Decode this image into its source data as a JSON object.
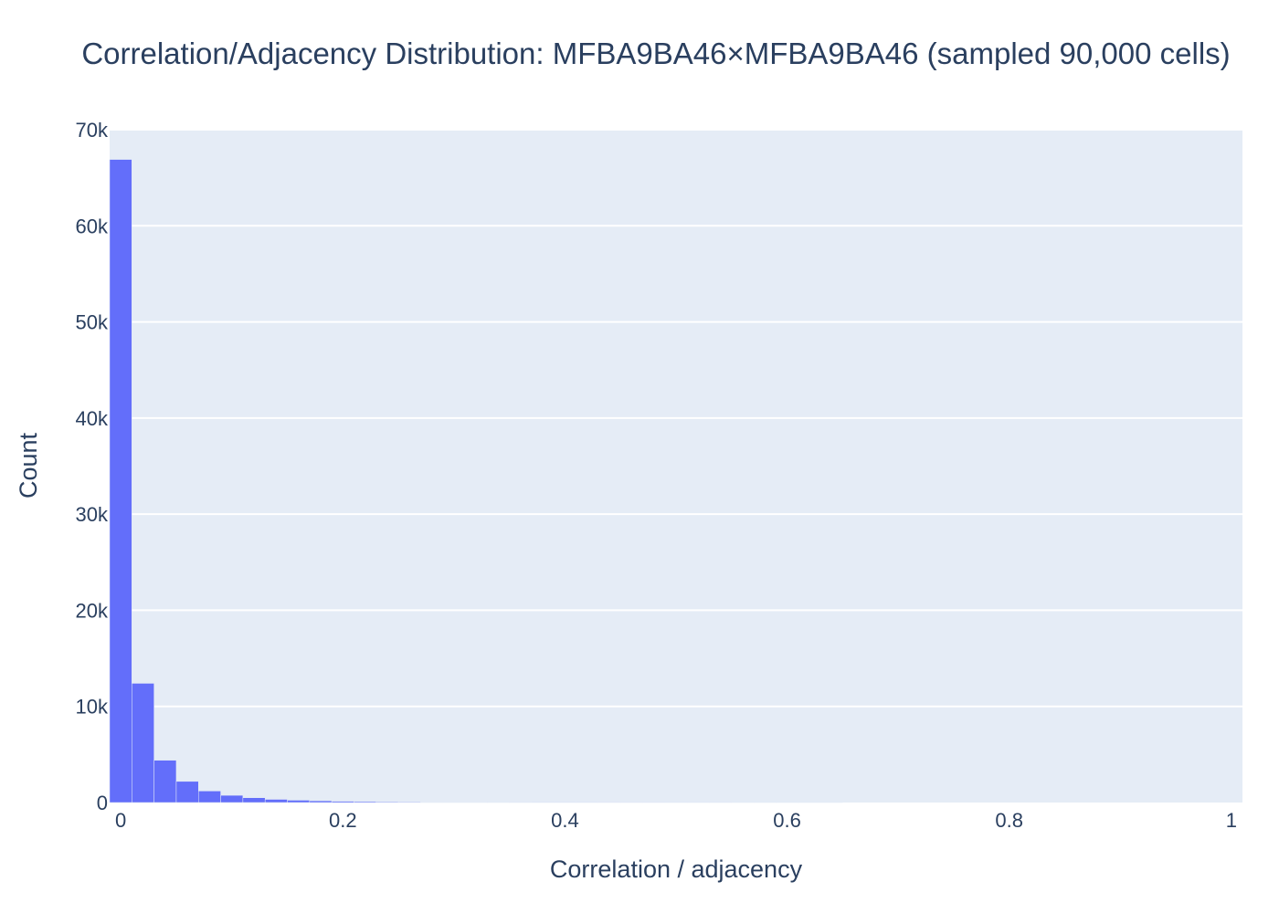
{
  "chart_data": {
    "type": "bar",
    "title": "Correlation/Adjacency Distribution: MFBA9BA46×MFBA9BA46 (sampled 90,000 cells)",
    "xlabel": "Correlation / adjacency",
    "ylabel": "Count",
    "xlim": [
      -0.01,
      1.01
    ],
    "ylim": [
      0,
      70000
    ],
    "x_ticks": [
      {
        "value": 0,
        "label": "0"
      },
      {
        "value": 0.2,
        "label": "0.2"
      },
      {
        "value": 0.4,
        "label": "0.4"
      },
      {
        "value": 0.6,
        "label": "0.6"
      },
      {
        "value": 0.8,
        "label": "0.8"
      },
      {
        "value": 1,
        "label": "1"
      }
    ],
    "y_ticks": [
      {
        "value": 0,
        "label": "0"
      },
      {
        "value": 10000,
        "label": "10k"
      },
      {
        "value": 20000,
        "label": "20k"
      },
      {
        "value": 30000,
        "label": "30k"
      },
      {
        "value": 40000,
        "label": "40k"
      },
      {
        "value": 50000,
        "label": "50k"
      },
      {
        "value": 60000,
        "label": "60k"
      },
      {
        "value": 70000,
        "label": "70k"
      }
    ],
    "bin_width": 0.02,
    "bins": [
      {
        "x0": -0.01,
        "x1": 0.01,
        "count": 66900
      },
      {
        "x0": 0.01,
        "x1": 0.03,
        "count": 12400
      },
      {
        "x0": 0.03,
        "x1": 0.05,
        "count": 4400
      },
      {
        "x0": 0.05,
        "x1": 0.07,
        "count": 2200
      },
      {
        "x0": 0.07,
        "x1": 0.09,
        "count": 1200
      },
      {
        "x0": 0.09,
        "x1": 0.11,
        "count": 750
      },
      {
        "x0": 0.11,
        "x1": 0.13,
        "count": 500
      },
      {
        "x0": 0.13,
        "x1": 0.15,
        "count": 330
      },
      {
        "x0": 0.15,
        "x1": 0.17,
        "count": 240
      },
      {
        "x0": 0.17,
        "x1": 0.19,
        "count": 180
      },
      {
        "x0": 0.19,
        "x1": 0.21,
        "count": 130
      },
      {
        "x0": 0.21,
        "x1": 0.23,
        "count": 100
      },
      {
        "x0": 0.23,
        "x1": 0.25,
        "count": 75
      },
      {
        "x0": 0.25,
        "x1": 0.27,
        "count": 60
      },
      {
        "x0": 0.27,
        "x1": 0.29,
        "count": 45
      },
      {
        "x0": 0.29,
        "x1": 0.31,
        "count": 35
      },
      {
        "x0": 0.31,
        "x1": 0.33,
        "count": 28
      },
      {
        "x0": 0.33,
        "x1": 0.35,
        "count": 22
      },
      {
        "x0": 0.35,
        "x1": 0.37,
        "count": 18
      },
      {
        "x0": 0.37,
        "x1": 0.39,
        "count": 14
      },
      {
        "x0": 0.39,
        "x1": 0.41,
        "count": 11
      },
      {
        "x0": 0.41,
        "x1": 0.43,
        "count": 9
      },
      {
        "x0": 0.43,
        "x1": 0.45,
        "count": 7
      },
      {
        "x0": 0.45,
        "x1": 0.47,
        "count": 6
      },
      {
        "x0": 0.47,
        "x1": 0.49,
        "count": 5
      },
      {
        "x0": 0.49,
        "x1": 0.51,
        "count": 4
      },
      {
        "x0": 0.51,
        "x1": 0.53,
        "count": 3
      },
      {
        "x0": 0.53,
        "x1": 0.55,
        "count": 3
      },
      {
        "x0": 0.55,
        "x1": 0.57,
        "count": 2
      },
      {
        "x0": 0.57,
        "x1": 0.59,
        "count": 2
      },
      {
        "x0": 0.59,
        "x1": 0.61,
        "count": 1
      },
      {
        "x0": 0.61,
        "x1": 0.63,
        "count": 1
      },
      {
        "x0": 0.63,
        "x1": 0.65,
        "count": 1
      }
    ],
    "grid": true,
    "legend": "none",
    "colors": {
      "bar_fill": "#636efa",
      "bar_stroke": "#e5ecf6",
      "plot_background": "#e5ecf6",
      "grid": "#ffffff",
      "text": "#2a3f5f"
    }
  }
}
